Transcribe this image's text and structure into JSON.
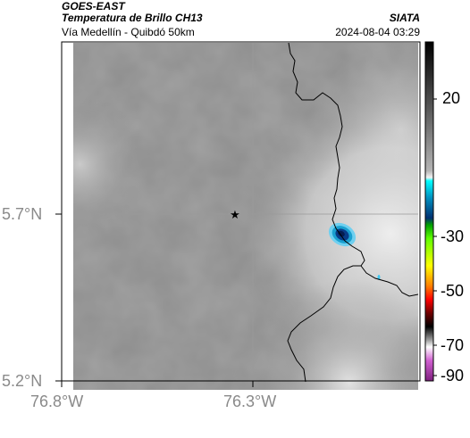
{
  "header": {
    "satellite": "GOES-EAST",
    "product": "Temperatura de Brillo CH13",
    "region": "Vía Medellín - Quibdó 50km",
    "org": "SIATA",
    "datetime": "2024-08-04 03:29"
  },
  "axes": {
    "lat_labels": [
      "5.7°N",
      "5.2°N"
    ],
    "lon_labels": [
      "76.8°W",
      "76.3°W"
    ]
  },
  "colorbar": {
    "ticks": [
      "20",
      "-30",
      "-50",
      "-70",
      "-90"
    ]
  }
}
